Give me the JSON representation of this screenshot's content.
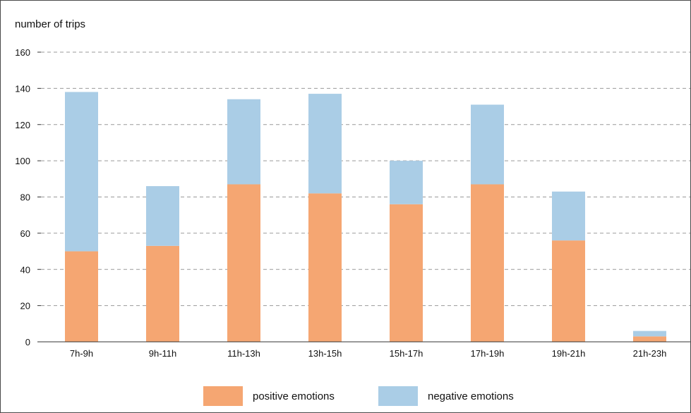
{
  "chart_data": {
    "type": "bar",
    "stacked": true,
    "title": "",
    "ylabel": "number of trips",
    "xlabel": "",
    "ylim": [
      0,
      160
    ],
    "yticks": [
      0,
      20,
      40,
      60,
      80,
      100,
      120,
      140,
      160
    ],
    "grid": "horizontal dashed",
    "legend_placement": "bottom-center",
    "categories": [
      "7h-9h",
      "9h-11h",
      "11h-13h",
      "13h-15h",
      "15h-17h",
      "17h-19h",
      "19h-21h",
      "21h-23h"
    ],
    "series": [
      {
        "name": "positive emotions",
        "color": "#f5a672",
        "values": [
          50,
          53,
          87,
          82,
          76,
          87,
          56,
          3
        ]
      },
      {
        "name": "negative emotions",
        "color": "#aacde6",
        "values": [
          88,
          33,
          47,
          55,
          24,
          44,
          27,
          3
        ]
      }
    ]
  }
}
